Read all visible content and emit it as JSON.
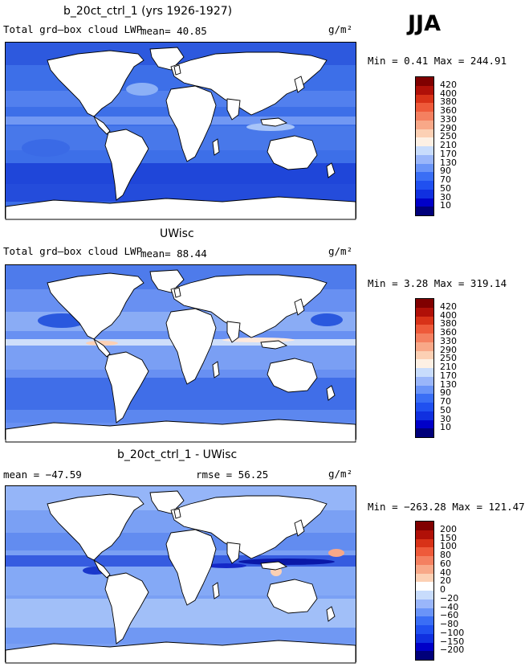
{
  "season": "JJA",
  "panels": [
    {
      "title": "b_20ct_ctrl_1 (yrs 1926-1927)",
      "left_label": "Total grd–box cloud LWP",
      "mean_label": "mean=  40.85",
      "units": "g/m²",
      "minmax": "Min =   0.41 Max = 244.91"
    },
    {
      "title": "UWisc",
      "left_label": "Total grd–box cloud LWP",
      "mean_label": "mean=  88.44",
      "units": "g/m²",
      "minmax": "Min =   3.28 Max = 319.14"
    },
    {
      "title": "b_20ct_ctrl_1 - UWisc",
      "left_label": "mean = −47.59",
      "mean_label": "rmse =  56.25",
      "units": "g/m²",
      "minmax": "Min = −263.28 Max = 121.47"
    }
  ],
  "chart_data": [
    {
      "type": "heatmap",
      "title": "b_20ct_ctrl_1 (yrs 1926-1927)",
      "variable": "Total grd–box cloud LWP",
      "units": "g/m²",
      "mean": 40.85,
      "min": 0.41,
      "max": 244.91,
      "colorbar_levels": [
        10,
        30,
        50,
        70,
        90,
        130,
        170,
        210,
        250,
        290,
        330,
        360,
        380,
        400,
        420
      ],
      "colors": [
        "#00007a",
        "#0000c8",
        "#1030e0",
        "#2050f0",
        "#3a6ef5",
        "#6a94f8",
        "#9ab6fa",
        "#c8dcfc",
        "#fdf0e4",
        "#fcd0b4",
        "#f8a888",
        "#f48060",
        "#ee5a3a",
        "#d83218",
        "#b01008",
        "#800000"
      ]
    },
    {
      "type": "heatmap",
      "title": "UWisc",
      "variable": "Total grd–box cloud LWP",
      "units": "g/m²",
      "mean": 88.44,
      "min": 3.28,
      "max": 319.14,
      "colorbar_levels": [
        10,
        30,
        50,
        70,
        90,
        130,
        170,
        210,
        250,
        290,
        330,
        360,
        380,
        400,
        420
      ],
      "colors": [
        "#00007a",
        "#0000c8",
        "#1030e0",
        "#2050f0",
        "#3a6ef5",
        "#6a94f8",
        "#9ab6fa",
        "#c8dcfc",
        "#fdf0e4",
        "#fcd0b4",
        "#f8a888",
        "#f48060",
        "#ee5a3a",
        "#d83218",
        "#b01008",
        "#800000"
      ]
    },
    {
      "type": "heatmap",
      "title": "b_20ct_ctrl_1 - UWisc",
      "units": "g/m²",
      "mean": -47.59,
      "rmse": 56.25,
      "min": -263.28,
      "max": 121.47,
      "colorbar_levels": [
        -200,
        -150,
        -100,
        -80,
        -60,
        -40,
        -20,
        0,
        20,
        40,
        60,
        80,
        100,
        150,
        200
      ],
      "colors": [
        "#00007a",
        "#0000c8",
        "#1030e0",
        "#2050f0",
        "#3a6ef5",
        "#6a94f8",
        "#9ab6fa",
        "#c8dcfc",
        "#ffffff",
        "#fcd0b4",
        "#f8a888",
        "#f48060",
        "#ee5a3a",
        "#d83218",
        "#b01008",
        "#800000"
      ]
    }
  ]
}
